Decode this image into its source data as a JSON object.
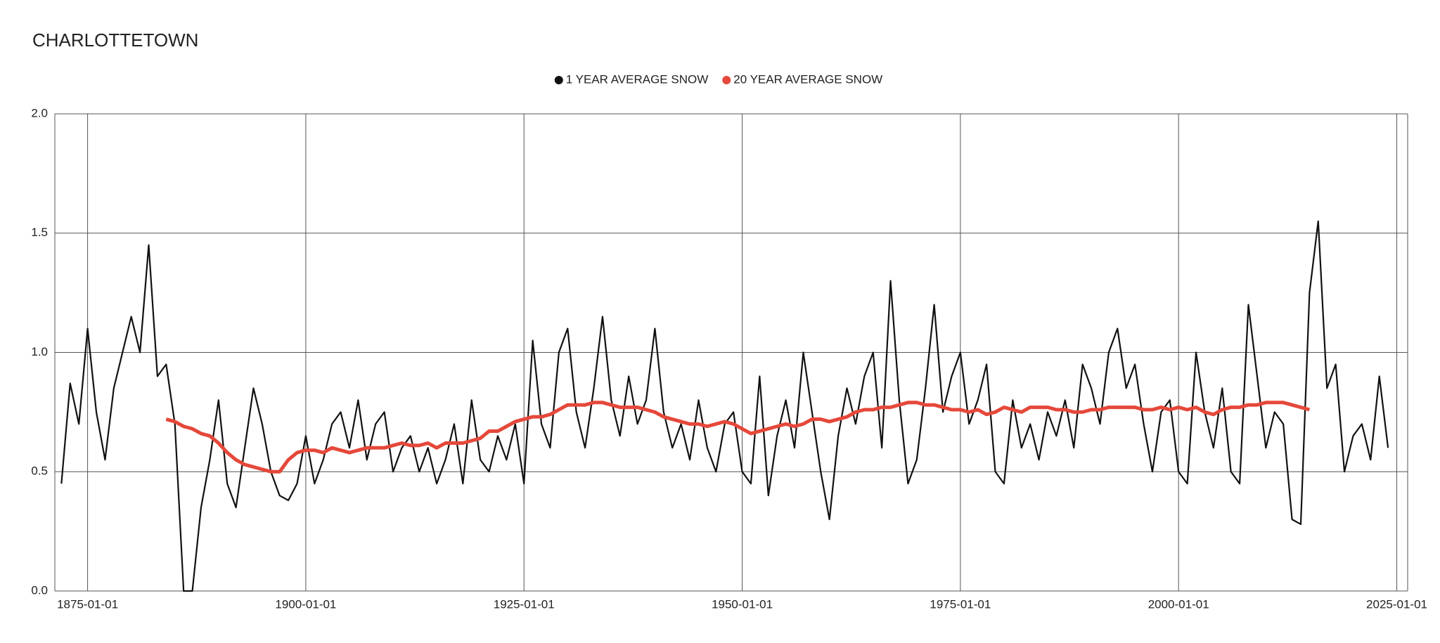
{
  "chart_data": {
    "type": "line",
    "title": "CHARLOTTETOWN",
    "x": [
      "1872-01-01",
      "1873-01-01",
      "1874-01-01",
      "1875-01-01",
      "1876-01-01",
      "1877-01-01",
      "1878-01-01",
      "1879-01-01",
      "1880-01-01",
      "1881-01-01",
      "1882-01-01",
      "1883-01-01",
      "1884-01-01",
      "1885-01-01",
      "1886-01-01",
      "1887-01-01",
      "1888-01-01",
      "1889-01-01",
      "1890-01-01",
      "1891-01-01",
      "1892-01-01",
      "1893-01-01",
      "1894-01-01",
      "1895-01-01",
      "1896-01-01",
      "1897-01-01",
      "1898-01-01",
      "1899-01-01",
      "1900-01-01",
      "1901-01-01",
      "1902-01-01",
      "1903-01-01",
      "1904-01-01",
      "1905-01-01",
      "1906-01-01",
      "1907-01-01",
      "1908-01-01",
      "1909-01-01",
      "1910-01-01",
      "1911-01-01",
      "1912-01-01",
      "1913-01-01",
      "1914-01-01",
      "1915-01-01",
      "1916-01-01",
      "1917-01-01",
      "1918-01-01",
      "1919-01-01",
      "1920-01-01",
      "1921-01-01",
      "1922-01-01",
      "1923-01-01",
      "1924-01-01",
      "1925-01-01",
      "1926-01-01",
      "1927-01-01",
      "1928-01-01",
      "1929-01-01",
      "1930-01-01",
      "1931-01-01",
      "1932-01-01",
      "1933-01-01",
      "1934-01-01",
      "1935-01-01",
      "1936-01-01",
      "1937-01-01",
      "1938-01-01",
      "1939-01-01",
      "1940-01-01",
      "1941-01-01",
      "1942-01-01",
      "1943-01-01",
      "1944-01-01",
      "1945-01-01",
      "1946-01-01",
      "1947-01-01",
      "1948-01-01",
      "1949-01-01",
      "1950-01-01",
      "1951-01-01",
      "1952-01-01",
      "1953-01-01",
      "1954-01-01",
      "1955-01-01",
      "1956-01-01",
      "1957-01-01",
      "1958-01-01",
      "1959-01-01",
      "1960-01-01",
      "1961-01-01",
      "1962-01-01",
      "1963-01-01",
      "1964-01-01",
      "1965-01-01",
      "1966-01-01",
      "1967-01-01",
      "1968-01-01",
      "1969-01-01",
      "1970-01-01",
      "1971-01-01",
      "1972-01-01",
      "1973-01-01",
      "1974-01-01",
      "1975-01-01",
      "1976-01-01",
      "1977-01-01",
      "1978-01-01",
      "1979-01-01",
      "1980-01-01",
      "1981-01-01",
      "1982-01-01",
      "1983-01-01",
      "1984-01-01",
      "1985-01-01",
      "1986-01-01",
      "1987-01-01",
      "1988-01-01",
      "1989-01-01",
      "1990-01-01",
      "1991-01-01",
      "1992-01-01",
      "1993-01-01",
      "1994-01-01",
      "1995-01-01",
      "1996-01-01",
      "1997-01-01",
      "1998-01-01",
      "1999-01-01",
      "2000-01-01",
      "2001-01-01",
      "2002-01-01",
      "2003-01-01",
      "2004-01-01",
      "2005-01-01",
      "2006-01-01",
      "2007-01-01",
      "2008-01-01",
      "2009-01-01",
      "2010-01-01",
      "2011-01-01",
      "2012-01-01",
      "2013-01-01",
      "2014-01-01",
      "2015-01-01",
      "2016-01-01",
      "2017-01-01",
      "2018-01-01",
      "2019-01-01",
      "2020-01-01",
      "2021-01-01",
      "2022-01-01",
      "2023-01-01",
      "2024-01-01"
    ],
    "series": [
      {
        "name": "1 YEAR AVERAGE SNOW",
        "color": "#111111",
        "values": [
          0.45,
          0.87,
          0.7,
          1.1,
          0.75,
          0.55,
          0.85,
          1.0,
          1.15,
          1.0,
          1.45,
          0.9,
          0.95,
          0.7,
          0,
          0,
          0.35,
          0.55,
          0.8,
          0.45,
          0.35,
          0.6,
          0.85,
          0.7,
          0.5,
          0.4,
          0.38,
          0.45,
          0.65,
          0.45,
          0.55,
          0.7,
          0.75,
          0.6,
          0.8,
          0.55,
          0.7,
          0.75,
          0.5,
          0.6,
          0.65,
          0.5,
          0.6,
          0.45,
          0.55,
          0.7,
          0.45,
          0.8,
          0.55,
          0.5,
          0.65,
          0.55,
          0.7,
          0.45,
          1.05,
          0.7,
          0.6,
          1.0,
          1.1,
          0.75,
          0.6,
          0.85,
          1.15,
          0.8,
          0.65,
          0.9,
          0.7,
          0.8,
          1.1,
          0.75,
          0.6,
          0.7,
          0.55,
          0.8,
          0.6,
          0.5,
          0.7,
          0.75,
          0.5,
          0.45,
          0.9,
          0.4,
          0.65,
          0.8,
          0.6,
          1.0,
          0.75,
          0.5,
          0.3,
          0.65,
          0.85,
          0.7,
          0.9,
          1.0,
          0.6,
          1.3,
          0.8,
          0.45,
          0.55,
          0.85,
          1.2,
          0.75,
          0.9,
          1.0,
          0.7,
          0.8,
          0.95,
          0.5,
          0.45,
          0.8,
          0.6,
          0.7,
          0.55,
          0.75,
          0.65,
          0.8,
          0.6,
          0.95,
          0.85,
          0.7,
          1.0,
          1.1,
          0.85,
          0.95,
          0.7,
          0.5,
          0.75,
          0.8,
          0.5,
          0.45,
          1.0,
          0.75,
          0.6,
          0.85,
          0.5,
          0.45,
          1.2,
          0.9,
          0.6,
          0.75,
          0.7,
          0.3,
          0.28,
          1.25,
          1.55,
          0.85,
          0.95,
          0.5,
          0.65,
          0.7,
          0.55,
          0.9,
          0.6
        ]
      },
      {
        "name": "20 YEAR AVERAGE SNOW",
        "color": "#e5483a",
        "values": [
          null,
          null,
          null,
          null,
          null,
          null,
          null,
          null,
          null,
          null,
          null,
          null,
          0.72,
          0.71,
          0.69,
          0.68,
          0.66,
          0.65,
          0.62,
          0.58,
          0.55,
          0.53,
          0.52,
          0.51,
          0.5,
          0.5,
          0.55,
          0.58,
          0.59,
          0.59,
          0.58,
          0.6,
          0.59,
          0.58,
          0.59,
          0.6,
          0.6,
          0.6,
          0.61,
          0.62,
          0.61,
          0.61,
          0.62,
          0.6,
          0.62,
          0.62,
          0.62,
          0.63,
          0.64,
          0.67,
          0.67,
          0.69,
          0.71,
          0.72,
          0.73,
          0.73,
          0.74,
          0.76,
          0.78,
          0.78,
          0.78,
          0.79,
          0.79,
          0.78,
          0.77,
          0.77,
          0.77,
          0.76,
          0.75,
          0.73,
          0.72,
          0.71,
          0.7,
          0.7,
          0.69,
          0.7,
          0.71,
          0.7,
          0.68,
          0.66,
          0.67,
          0.68,
          0.69,
          0.7,
          0.69,
          0.7,
          0.72,
          0.72,
          0.71,
          0.72,
          0.73,
          0.75,
          0.76,
          0.76,
          0.77,
          0.77,
          0.78,
          0.79,
          0.79,
          0.78,
          0.78,
          0.77,
          0.76,
          0.76,
          0.75,
          0.76,
          0.74,
          0.75,
          0.77,
          0.76,
          0.75,
          0.77,
          0.77,
          0.77,
          0.76,
          0.76,
          0.75,
          0.75,
          0.76,
          0.76,
          0.77,
          0.77,
          0.77,
          0.77,
          0.76,
          0.76,
          0.77,
          0.76,
          0.77,
          0.76,
          0.77,
          0.75,
          0.74,
          0.76,
          0.77,
          0.77,
          0.78,
          0.78,
          0.79,
          0.79,
          0.79,
          0.78,
          0.77,
          0.76,
          null,
          null,
          null,
          null,
          null,
          null,
          null,
          null,
          null
        ]
      }
    ],
    "xlim": [
      "1871-04-01",
      "2026-04-01"
    ],
    "xticks": [
      "1875-01-01",
      "1900-01-01",
      "1925-01-01",
      "1950-01-01",
      "1975-01-01",
      "2000-01-01",
      "2025-01-01"
    ],
    "ylim": [
      0,
      2
    ],
    "yticks": [
      {
        "value": 0,
        "label": "0.0"
      },
      {
        "value": 0.5,
        "label": "0.5"
      },
      {
        "value": 1,
        "label": "1.0"
      },
      {
        "value": 1.5,
        "label": "1.5"
      },
      {
        "value": 2,
        "label": "2.0"
      }
    ],
    "grid": true,
    "legend": "top"
  }
}
